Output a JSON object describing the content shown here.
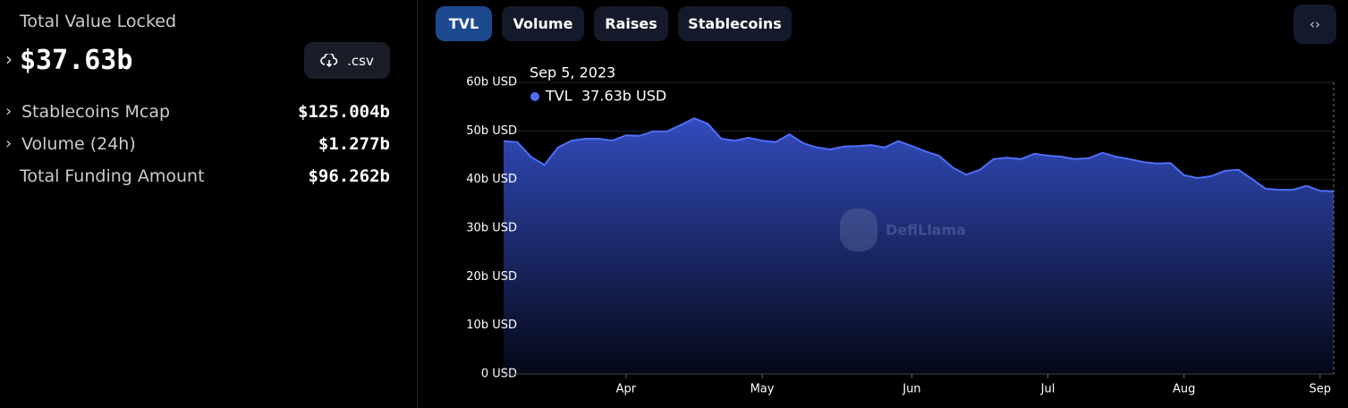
{
  "sidebar": {
    "title": "Total Value Locked",
    "value": "$37.63b",
    "download": ".csv",
    "rows": [
      {
        "label": "Stablecoins Mcap",
        "value": "$125.004b"
      },
      {
        "label": "Volume (24h)",
        "value": "$1.277b"
      },
      {
        "label": "Total Funding Amount",
        "value": "$96.262b"
      }
    ]
  },
  "tabs": [
    "TVL",
    "Volume",
    "Raises",
    "Stablecoins"
  ],
  "watermark": "DefiLlama",
  "chart_data": {
    "type": "area",
    "tooltip": {
      "date": "Sep 5, 2023",
      "value_label": "37.63b USD"
    },
    "categories": [
      null,
      null,
      null,
      null,
      null,
      null,
      null,
      null,
      null,
      "Apr",
      null,
      null,
      null,
      null,
      null,
      null,
      null,
      null,
      null,
      "May",
      null,
      null,
      null,
      null,
      null,
      null,
      null,
      null,
      null,
      null,
      "Jun",
      null,
      null,
      null,
      null,
      null,
      null,
      null,
      null,
      null,
      "Jul",
      null,
      null,
      null,
      null,
      null,
      null,
      null,
      null,
      null,
      "Aug",
      null,
      null,
      null,
      null,
      null,
      null,
      null,
      null,
      null,
      "Sep",
      null
    ],
    "series": [
      {
        "name": "TVL",
        "color": "#4f6ef7",
        "values": [
          47.9,
          47.7,
          44.7,
          43.0,
          46.6,
          48.0,
          48.4,
          48.4,
          48.0,
          49.1,
          49.0,
          49.9,
          49.9,
          51.2,
          52.6,
          51.5,
          48.4,
          48.0,
          48.6,
          48.0,
          47.7,
          49.3,
          47.5,
          46.6,
          46.2,
          46.8,
          46.9,
          47.1,
          46.6,
          47.9,
          46.9,
          45.8,
          44.9,
          42.5,
          41.0,
          42.0,
          44.2,
          44.5,
          44.2,
          45.3,
          44.9,
          44.7,
          44.2,
          44.4,
          45.5,
          44.7,
          44.2,
          43.6,
          43.3,
          43.4,
          40.9,
          40.3,
          40.7,
          41.8,
          42.0,
          40.1,
          38.1,
          37.9,
          37.9,
          38.7,
          37.7,
          37.6
        ]
      }
    ],
    "ylim": [
      0,
      60
    ],
    "yticks": [
      {
        "value": 0,
        "label": "0 USD"
      },
      {
        "value": 10,
        "label": "10b USD"
      },
      {
        "value": 20,
        "label": "20b USD"
      },
      {
        "value": 30,
        "label": "30b USD"
      },
      {
        "value": 40,
        "label": "40b USD"
      },
      {
        "value": 50,
        "label": "50b USD"
      },
      {
        "value": 60,
        "label": "60b USD"
      }
    ],
    "grid": true
  }
}
